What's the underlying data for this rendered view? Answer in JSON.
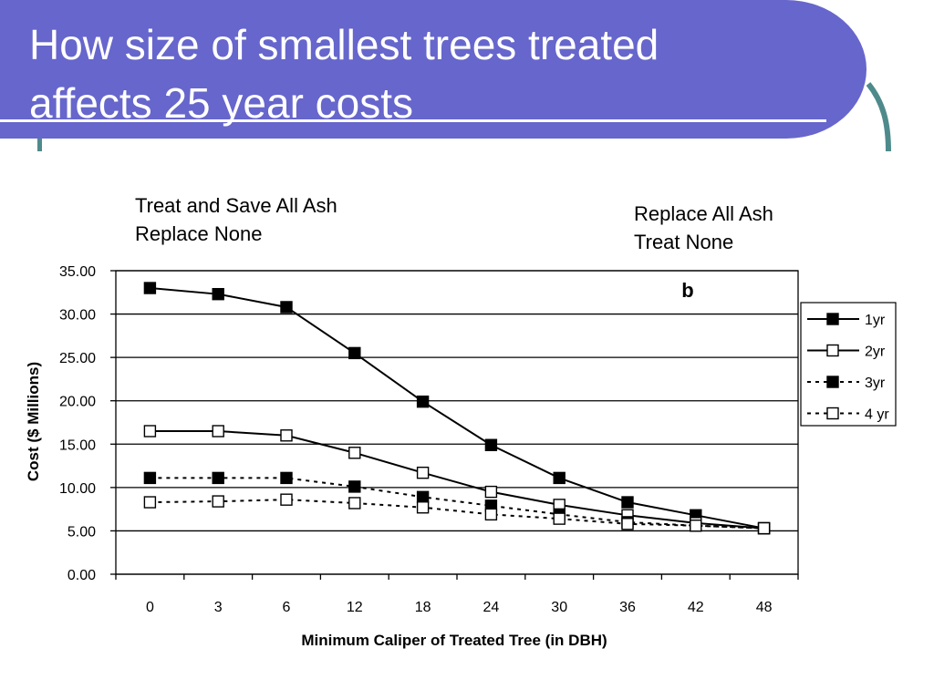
{
  "slide": {
    "title_line1": "How size of smallest trees treated",
    "title_line2": "affects 25 year costs",
    "note_left_line1": "Treat and Save All Ash",
    "note_left_line2": "Replace None",
    "note_right_line1": "Replace All Ash",
    "note_right_line2": "Treat None",
    "colors": {
      "title_band": "#6666cc",
      "accent": "#4f8a8b"
    }
  },
  "chart_data": {
    "type": "line",
    "title": "",
    "panel_label": "b",
    "xlabel": "Minimum Caliper of  Treated Tree (in DBH)",
    "ylabel": "Cost ($ Millions)",
    "categories": [
      "0",
      "3",
      "6",
      "12",
      "18",
      "24",
      "30",
      "36",
      "42",
      "48"
    ],
    "ylim": [
      0,
      35
    ],
    "yticks": [
      "0.00",
      "5.00",
      "10.00",
      "15.00",
      "20.00",
      "25.00",
      "30.00",
      "35.00"
    ],
    "grid": "horizontal",
    "legend_position": "right",
    "series": [
      {
        "name": "1yr",
        "marker": "filled-square",
        "line": "solid",
        "values": [
          33.0,
          32.3,
          30.8,
          25.5,
          19.9,
          14.9,
          11.1,
          8.3,
          6.8,
          5.3
        ]
      },
      {
        "name": "2yr",
        "marker": "open-square",
        "line": "solid",
        "values": [
          16.5,
          16.5,
          16.0,
          14.0,
          11.7,
          9.5,
          8.0,
          6.8,
          5.9,
          5.3
        ]
      },
      {
        "name": "3yr",
        "marker": "filled-square",
        "line": "dashed",
        "values": [
          11.1,
          11.1,
          11.1,
          10.1,
          8.9,
          7.9,
          6.9,
          6.0,
          5.6,
          5.3
        ]
      },
      {
        "name": "4 yr",
        "marker": "open-square",
        "line": "dashed",
        "values": [
          8.3,
          8.4,
          8.6,
          8.2,
          7.7,
          6.9,
          6.4,
          5.8,
          5.6,
          5.3
        ]
      }
    ]
  }
}
